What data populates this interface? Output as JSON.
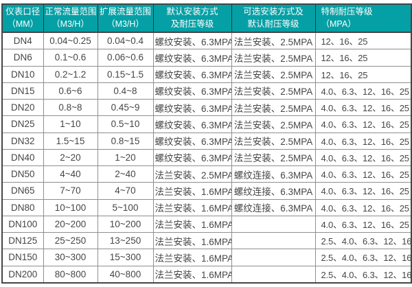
{
  "colors": {
    "header_bg": "#05a0a5",
    "header_text": "#ffffff",
    "body_text": "#454545",
    "grid_line": "#8e8e8e",
    "frame_line": "#454545",
    "header_divider": "#2f2f2f",
    "page_bg": "#ffffff"
  },
  "table": {
    "headers": [
      {
        "line1": "仪表口径",
        "line2": "（MM）"
      },
      {
        "line1": "正常流量范围",
        "line2": "（M3/H）"
      },
      {
        "line1": "扩展流量范围",
        "line2": "（M3/H）"
      },
      {
        "line1": "默认安装方式",
        "line2": "及耐压等级"
      },
      {
        "line1": "可选安装方式及",
        "line2": "默认耐压等级"
      },
      {
        "line1": "特制耐压等级",
        "line2": "（MPA）"
      }
    ],
    "rows": [
      {
        "diameter": "DN4",
        "normal_flow": "0.04~0.25",
        "extended_flow": "0.04~0.4",
        "default_install": "螺纹安装、6.3MPA",
        "optional_install": "法兰安装、2.5MPA",
        "special_pressure": "12、16、25"
      },
      {
        "diameter": "DN6",
        "normal_flow": "0.1~0.6",
        "extended_flow": "0.06~0.6",
        "default_install": "螺纹安装、6.3MPA",
        "optional_install": "法兰安装、2.5MPA",
        "special_pressure": "12、16、25"
      },
      {
        "diameter": "DN10",
        "normal_flow": "0.2~1.2",
        "extended_flow": "0.15~1.5",
        "default_install": "螺纹安装、6.3MPA",
        "optional_install": "法兰安装、2.5MPA",
        "special_pressure": "12、16、25"
      },
      {
        "diameter": "DN15",
        "normal_flow": "0.6~6",
        "extended_flow": "0.4~8",
        "default_install": "螺纹安装、6.3MPA",
        "optional_install": "法兰安装、2.5MPA",
        "special_pressure": "4.0、6.3、12、16、25"
      },
      {
        "diameter": "DN20",
        "normal_flow": "0.8~8",
        "extended_flow": "0.45~9",
        "default_install": "螺纹安装、6.3MPA",
        "optional_install": "法兰安装、2.5MPA",
        "special_pressure": "4.0、6.3、12、16、25"
      },
      {
        "diameter": "DN25",
        "normal_flow": "1~10",
        "extended_flow": "0.5~10",
        "default_install": "螺纹安装、6.3MPA",
        "optional_install": "法兰安装、2.5MPA",
        "special_pressure": "4.0、6.3、12、16、25"
      },
      {
        "diameter": "DN32",
        "normal_flow": "1.5~15",
        "extended_flow": "0.8~15",
        "default_install": "螺纹安装、6.3MPA",
        "optional_install": "法兰安装、2.5MPA",
        "special_pressure": "4.0、6.3、12、16、25"
      },
      {
        "diameter": "DN40",
        "normal_flow": "2~20",
        "extended_flow": "1~20",
        "default_install": "螺纹安装、6.3MPA",
        "optional_install": "法兰安装、2.5MPA",
        "special_pressure": "4.0、6.3、12、16、25"
      },
      {
        "diameter": "DN50",
        "normal_flow": "4~40",
        "extended_flow": "2~40",
        "default_install": "法兰安装、2.5MPA",
        "optional_install": "螺纹连接、6.3MPA",
        "special_pressure": "4.0、6.3、12、16、25"
      },
      {
        "diameter": "DN65",
        "normal_flow": "7~70",
        "extended_flow": "4~70",
        "default_install": "法兰安装、1.6MPA",
        "optional_install": "螺纹连接、6.3MPA",
        "special_pressure": "4.0、6.3、12、16、25"
      },
      {
        "diameter": "DN80",
        "normal_flow": "10~100",
        "extended_flow": "5~100",
        "default_install": "法兰安装、1.6MPA",
        "optional_install": "螺纹连接、6.3MPA",
        "special_pressure": "4.0、6.3、12、16、25"
      },
      {
        "diameter": "DN100",
        "normal_flow": "20~200",
        "extended_flow": "10~200",
        "default_install": "法兰安装、1.6MPA",
        "optional_install": "",
        "special_pressure": "4.0、6.3、12、16、25"
      },
      {
        "diameter": "DN125",
        "normal_flow": "25~250",
        "extended_flow": "13~250",
        "default_install": "法兰安装、1.6MPA",
        "optional_install": "",
        "special_pressure": "2.5、4.0、6.3、12、16"
      },
      {
        "diameter": "DN150",
        "normal_flow": "30~300",
        "extended_flow": "15~300",
        "default_install": "法兰安装、1.6MPA",
        "optional_install": "",
        "special_pressure": "2.5、4.0、6.3、12、16"
      },
      {
        "diameter": "DN200",
        "normal_flow": "80~800",
        "extended_flow": "40~800",
        "default_install": "法兰安装、1.6MPA",
        "optional_install": "",
        "special_pressure": "2.5、4.0、6.3、12、16"
      }
    ]
  }
}
